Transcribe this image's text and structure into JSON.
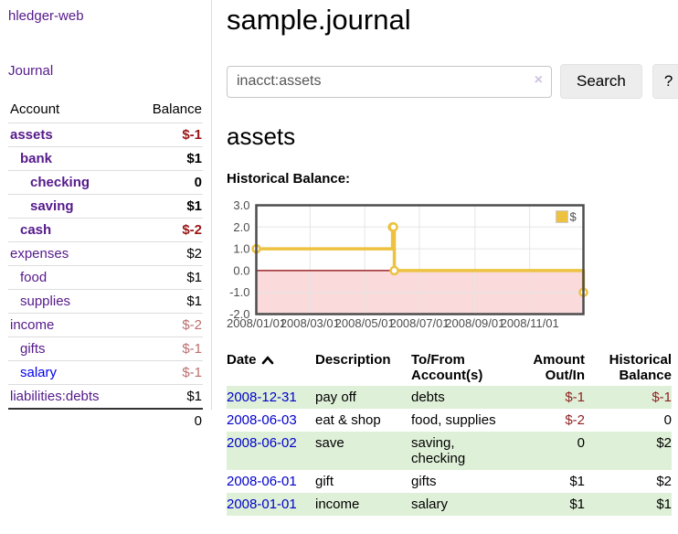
{
  "app": {
    "title": "hledger-web"
  },
  "colors": {
    "link_purple": "#551a8b",
    "link_blue": "#0000ee",
    "date_link_blue": "#0000cc",
    "negative_strong": "#991717",
    "negative_muted": "#bb6e6e",
    "negative_table": "#8f1f1f",
    "row_highlight_green": "#dff0d8",
    "series_gold": "#edc240",
    "negative_area_pink": "#fadada",
    "zero_line_red": "#8b0000"
  },
  "icons": {
    "sort_ascending": "chevron-up",
    "clear_search": "×",
    "help": "?"
  },
  "sidebar": {
    "journal_label": "Journal",
    "accounts": {
      "headers": {
        "account": "Account",
        "balance": "Balance"
      },
      "rows": [
        {
          "name": "assets",
          "balance": "$-1",
          "depth": 0,
          "bold": true,
          "balance_style": "neg-bold"
        },
        {
          "name": "bank",
          "balance": "$1",
          "depth": 1,
          "bold": true,
          "balance_style": "pos-bold"
        },
        {
          "name": "checking",
          "balance": "0",
          "depth": 2,
          "bold": true,
          "balance_style": "pos-bold"
        },
        {
          "name": "saving",
          "balance": "$1",
          "depth": 2,
          "bold": true,
          "balance_style": "pos-bold"
        },
        {
          "name": "cash",
          "balance": "$-2",
          "depth": 1,
          "bold": true,
          "balance_style": "neg-bold"
        },
        {
          "name": "expenses",
          "balance": "$2",
          "depth": 0,
          "bold": false,
          "balance_style": "pos"
        },
        {
          "name": "food",
          "balance": "$1",
          "depth": 1,
          "bold": false,
          "balance_style": "pos"
        },
        {
          "name": "supplies",
          "balance": "$1",
          "depth": 1,
          "bold": false,
          "balance_style": "pos"
        },
        {
          "name": "income",
          "balance": "$-2",
          "depth": 0,
          "bold": false,
          "balance_style": "neg"
        },
        {
          "name": "gifts",
          "balance": "$-1",
          "depth": 1,
          "bold": false,
          "balance_style": "neg"
        },
        {
          "name": "salary",
          "balance": "$-1",
          "depth": 1,
          "bold": false,
          "balance_style": "neg",
          "unvisited": true
        },
        {
          "name": "liabilities:debts",
          "balance": "$1",
          "depth": 0,
          "bold": false,
          "balance_style": "pos"
        }
      ],
      "total": "0"
    }
  },
  "header": {
    "title": "sample.journal"
  },
  "search": {
    "value": "inacct:assets",
    "clear_icon": "×",
    "button_label": "Search",
    "help_label": "?"
  },
  "register": {
    "heading": "assets",
    "chart_label": "Historical Balance:"
  },
  "chart_data": {
    "type": "line",
    "title": "Historical Balance",
    "step": true,
    "x": [
      "2008-01-01",
      "2008-06-01",
      "2008-06-02",
      "2008-06-03",
      "2008-12-31"
    ],
    "series": [
      {
        "name": "$",
        "color": "#edc240",
        "values": [
          1,
          2,
          2,
          0,
          -1
        ]
      }
    ],
    "x_range": [
      "2008-01-01",
      "2008-12-31"
    ],
    "ylim": [
      -2,
      3
    ],
    "x_tick_labels": [
      "2008/01/01",
      "2008/03/01",
      "2008/05/01",
      "2008/07/01",
      "2008/09/01",
      "2008/11/01"
    ],
    "y_tick_labels": [
      "3.0",
      "2.0",
      "1.0",
      "0.0",
      "-1.0",
      "-2.0"
    ],
    "grid": true,
    "legend": {
      "label": "$",
      "position": "top-right"
    },
    "negative_area_color": "#fadada",
    "zero_line_color": "#8b0000"
  },
  "transactions": {
    "headers": {
      "date": "Date",
      "description": "Description",
      "accounts": "To/From Account(s)",
      "amount": "Amount Out/In",
      "balance": "Historical Balance"
    },
    "rows": [
      {
        "date": "2008-12-31",
        "description": "pay off",
        "accounts": "debts",
        "amount": "$-1",
        "balance": "$-1",
        "highlight": true
      },
      {
        "date": "2008-06-03",
        "description": "eat & shop",
        "accounts": "food, supplies",
        "amount": "$-2",
        "balance": "0",
        "highlight": false
      },
      {
        "date": "2008-06-02",
        "description": "save",
        "accounts": "saving, checking",
        "amount": "0",
        "balance": "$2",
        "highlight": true
      },
      {
        "date": "2008-06-01",
        "description": "gift",
        "accounts": "gifts",
        "amount": "$1",
        "balance": "$2",
        "highlight": false
      },
      {
        "date": "2008-01-01",
        "description": "income",
        "accounts": "salary",
        "amount": "$1",
        "balance": "$1",
        "highlight": true
      }
    ]
  }
}
